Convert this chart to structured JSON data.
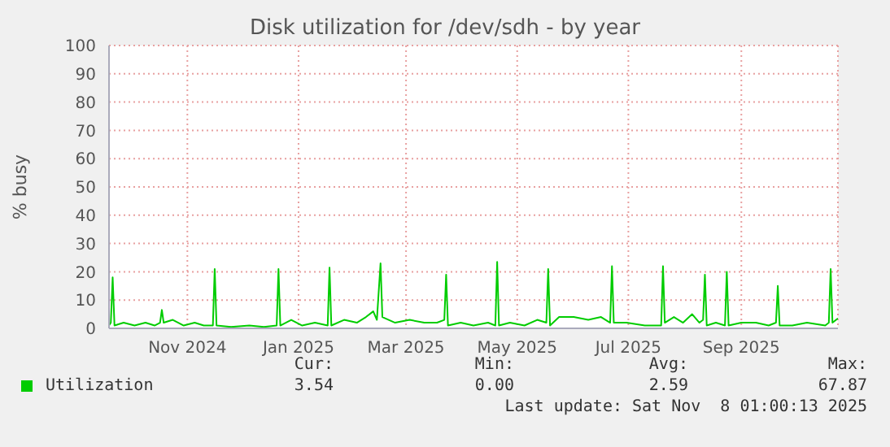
{
  "chart_data": {
    "type": "line",
    "title": "Disk utilization for /dev/sdh - by year",
    "ylabel": "% busy",
    "xlim": [
      "2024-10-04",
      "2025-11-08"
    ],
    "xticks": [
      {
        "value": "2024-11-16",
        "label": "Nov 2024"
      },
      {
        "value": "2025-01-16",
        "label": "Jan 2025"
      },
      {
        "value": "2025-03-16",
        "label": "Mar 2025"
      },
      {
        "value": "2025-05-16",
        "label": "May 2025"
      },
      {
        "value": "2025-07-16",
        "label": "Jul 2025"
      },
      {
        "value": "2025-09-16",
        "label": "Sep 2025"
      }
    ],
    "ylim": [
      0,
      100
    ],
    "yticks": [
      0,
      10,
      20,
      30,
      40,
      50,
      60,
      70,
      80,
      90,
      100
    ],
    "grid": true,
    "legend": "bottom left",
    "marker": "none",
    "line_style": "solid",
    "x": [
      "2024-10-04",
      "2024-10-05",
      "2024-10-06",
      "2024-10-07",
      "2024-10-12",
      "2024-10-18",
      "2024-10-24",
      "2024-10-29",
      "2024-11-01",
      "2024-11-02",
      "2024-11-03",
      "2024-11-08",
      "2024-11-14",
      "2024-11-20",
      "2024-11-25",
      "2024-11-30",
      "2024-12-01",
      "2024-12-02",
      "2024-12-10",
      "2024-12-20",
      "2024-12-28",
      "2025-01-04",
      "2025-01-05",
      "2025-01-06",
      "2025-01-12",
      "2025-01-18",
      "2025-01-25",
      "2025-02-01",
      "2025-02-02",
      "2025-02-03",
      "2025-02-10",
      "2025-02-17",
      "2025-02-22",
      "2025-02-26",
      "2025-02-28",
      "2025-03-02",
      "2025-03-03",
      "2025-03-10",
      "2025-03-18",
      "2025-03-26",
      "2025-04-02",
      "2025-04-06",
      "2025-04-07",
      "2025-04-08",
      "2025-04-15",
      "2025-04-22",
      "2025-04-30",
      "2025-05-04",
      "2025-05-05",
      "2025-05-06",
      "2025-05-12",
      "2025-05-20",
      "2025-05-27",
      "2025-06-01",
      "2025-06-02",
      "2025-06-03",
      "2025-06-08",
      "2025-06-16",
      "2025-06-24",
      "2025-07-01",
      "2025-07-06",
      "2025-07-07",
      "2025-07-08",
      "2025-07-15",
      "2025-07-25",
      "2025-08-03",
      "2025-08-04",
      "2025-08-05",
      "2025-08-10",
      "2025-08-15",
      "2025-08-20",
      "2025-08-24",
      "2025-08-26",
      "2025-08-27",
      "2025-08-28",
      "2025-09-02",
      "2025-09-07",
      "2025-09-08",
      "2025-09-09",
      "2025-09-16",
      "2025-09-24",
      "2025-10-01",
      "2025-10-05",
      "2025-10-06",
      "2025-10-07",
      "2025-10-14",
      "2025-10-22",
      "2025-11-01",
      "2025-11-03",
      "2025-11-04",
      "2025-11-05",
      "2025-11-08"
    ],
    "series": [
      {
        "name": "Utilization",
        "color": "#00cc00",
        "values": [
          1,
          2,
          18,
          1,
          2,
          1,
          2,
          1,
          2,
          6.5,
          2,
          3,
          1,
          2,
          1,
          1,
          21,
          1,
          0.5,
          1,
          0.5,
          1,
          21,
          1,
          3,
          1,
          2,
          1,
          21.5,
          1,
          3,
          2,
          4,
          6,
          3,
          23,
          4,
          2,
          3,
          2,
          2,
          3,
          19,
          1,
          2,
          1,
          2,
          1,
          23.5,
          1,
          2,
          1,
          3,
          2,
          21,
          1,
          4,
          4,
          3,
          4,
          2,
          22,
          2,
          2,
          1,
          1,
          22,
          2,
          4,
          2,
          5,
          2,
          3,
          19,
          1,
          2,
          1,
          20,
          1,
          2,
          2,
          1,
          2,
          15,
          1,
          1,
          2,
          1,
          2,
          21,
          2,
          3.5
        ]
      }
    ],
    "annotations": [
      "Cur:",
      "Min:",
      "Avg:",
      "Max:",
      "3.54",
      "0.00",
      "2.59",
      "67.87",
      "Last update: Sat Nov  8 01:00:13 2025"
    ]
  }
}
